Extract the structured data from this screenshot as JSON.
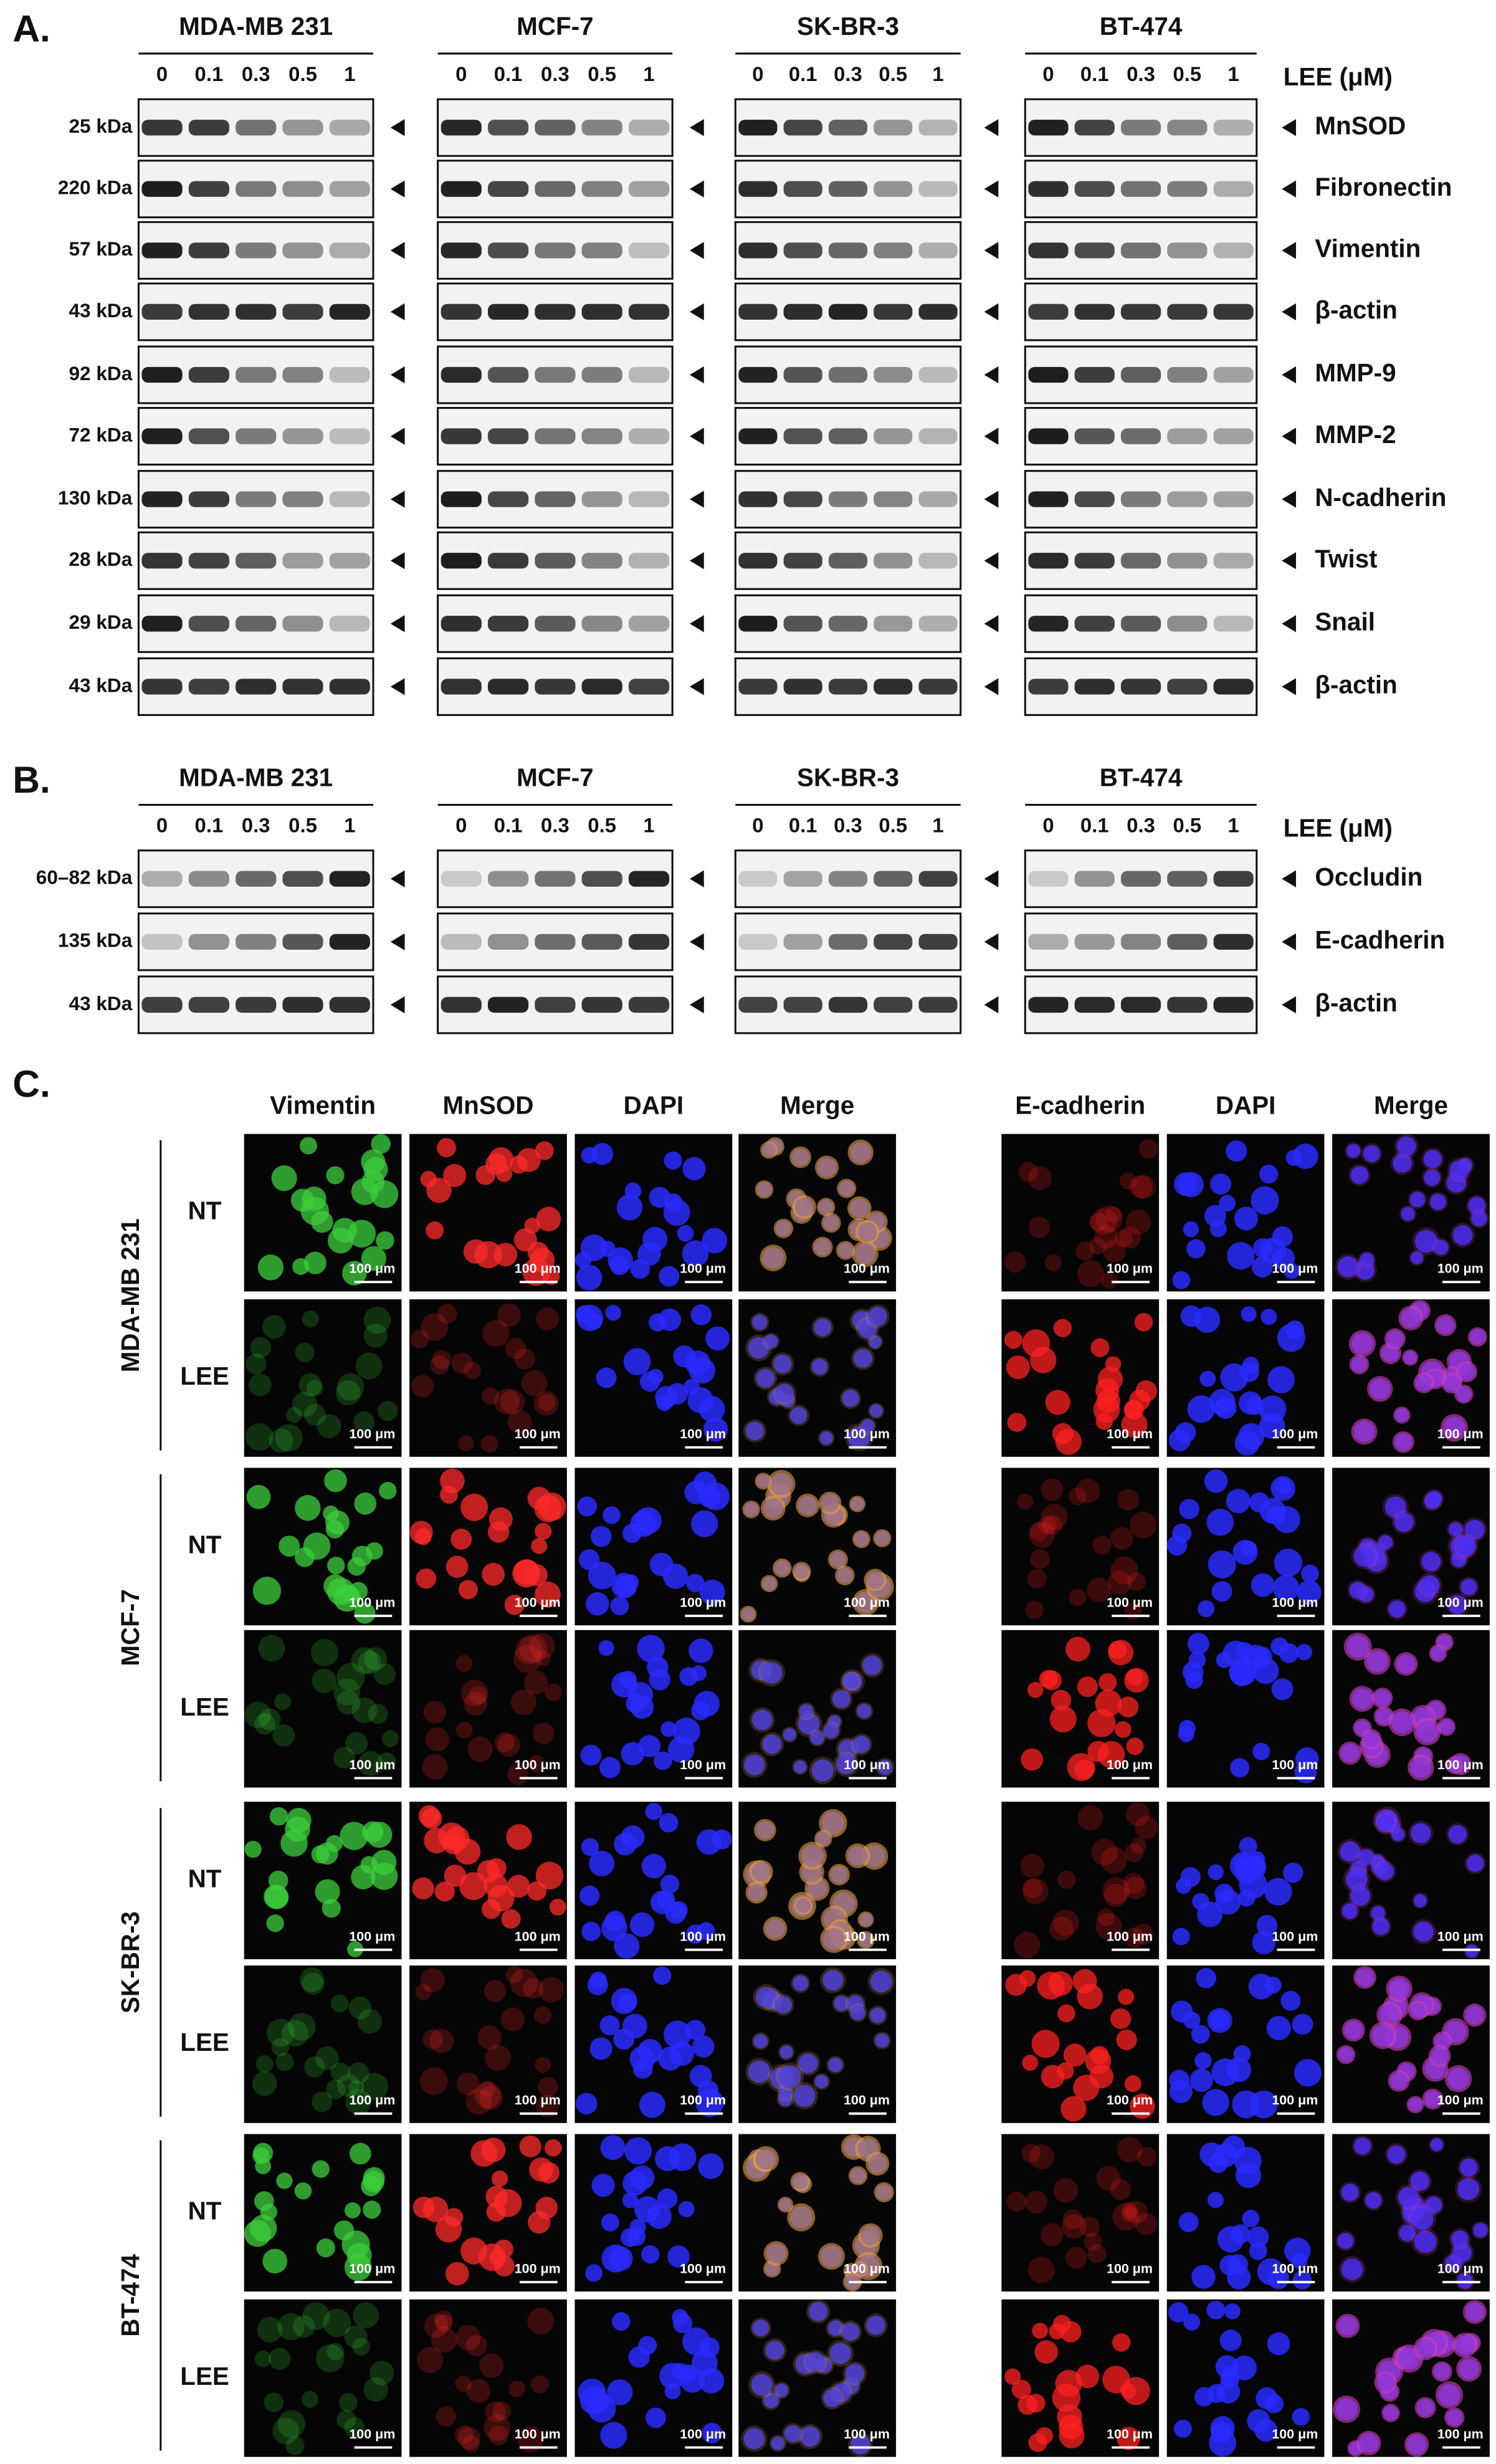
{
  "panel_a": {
    "label": "A.",
    "cell_lines": [
      "MDA-MB 231",
      "MCF-7",
      "SK-BR-3",
      "BT-474"
    ],
    "lanes": [
      "0",
      "0.1",
      "0.3",
      "0.5",
      "1"
    ],
    "treatment": "LEE (μM)",
    "rows": [
      {
        "size": "25 kDa",
        "protein": "MnSOD"
      },
      {
        "size": "220 kDa",
        "protein": "Fibronectin"
      },
      {
        "size": "57 kDa",
        "protein": "Vimentin"
      },
      {
        "size": "43 kDa",
        "protein": "β-actin"
      },
      {
        "size": "92 kDa",
        "protein": "MMP-9"
      },
      {
        "size": "72 kDa",
        "protein": "MMP-2"
      },
      {
        "size": "130 kDa",
        "protein": "N-cadherin"
      },
      {
        "size": "28 kDa",
        "protein": "Twist"
      },
      {
        "size": "29 kDa",
        "protein": "Snail"
      },
      {
        "size": "43 kDa",
        "protein": "β-actin"
      }
    ]
  },
  "panel_b": {
    "label": "B.",
    "cell_lines": [
      "MDA-MB 231",
      "MCF-7",
      "SK-BR-3",
      "BT-474"
    ],
    "lanes": [
      "0",
      "0.1",
      "0.3",
      "0.5",
      "1"
    ],
    "treatment": "LEE (μM)",
    "rows": [
      {
        "size": "60–82 kDa",
        "protein": "Occludin"
      },
      {
        "size": "135 kDa",
        "protein": "E-cadherin"
      },
      {
        "size": "43 kDa",
        "protein": "β-actin"
      }
    ]
  },
  "panel_c": {
    "label": "C.",
    "left_headers": [
      "Vimentin",
      "MnSOD",
      "DAPI",
      "Merge"
    ],
    "right_headers": [
      "E-cadherin",
      "DAPI",
      "Merge"
    ],
    "cell_lines": [
      "MDA-MB 231",
      "MCF-7",
      "SK-BR-3",
      "BT-474"
    ],
    "conditions": [
      "NT",
      "LEE"
    ],
    "scale_bar": "100 μm"
  }
}
